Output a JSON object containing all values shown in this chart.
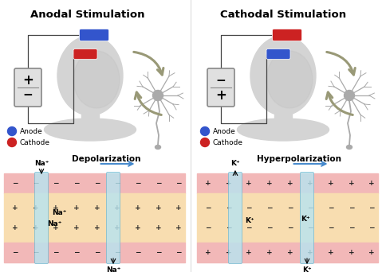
{
  "title_left": "Anodal Stimulation",
  "title_right": "Cathodal Stimulation",
  "legend_anode": "Anode",
  "legend_cathode": "Cathode",
  "label_depol": "Depolarization",
  "label_hyperpol": "Hyperpolarization",
  "ion_left": "Na⁺",
  "ion_right": "K⁺",
  "bg_color": "#ffffff",
  "membrane_outer_color": "#f2b8b8",
  "membrane_inner_color": "#f8ddb0",
  "channel_color": "#b8e4f0",
  "anode_color": "#3355cc",
  "cathode_color": "#cc2222",
  "arrow_color": "#999977",
  "blue_arrow_color": "#4488cc",
  "head_color": "#d4d4d4",
  "head_shadow": "#bcbcbc",
  "wire_color": "#444444",
  "battery_face": "#e0e0e0",
  "battery_edge": "#888888",
  "neuron_color": "#aaaaaa",
  "sign_color": "#222222",
  "divider_color": "#dddddd"
}
